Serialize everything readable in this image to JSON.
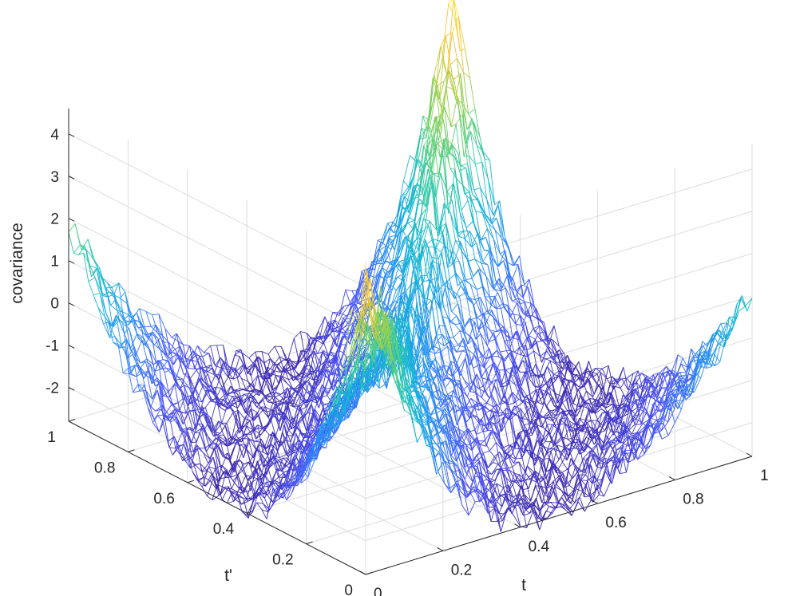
{
  "chart_data": {
    "type": "surface-mesh",
    "title": "",
    "xlabel": "t",
    "ylabel": "t'",
    "zlabel": "covariance",
    "xlim": [
      0,
      1
    ],
    "ylim": [
      0,
      1
    ],
    "zlim": [
      -2.8,
      4.6
    ],
    "x_ticks": [
      "0",
      "0.2",
      "0.4",
      "0.6",
      "0.8",
      "1"
    ],
    "y_ticks": [
      "0",
      "0.2",
      "0.4",
      "0.6",
      "0.8",
      "1"
    ],
    "z_ticks": [
      "-2",
      "-1",
      "0",
      "1",
      "2",
      "3",
      "4"
    ],
    "z_tick_values": [
      -2,
      -1,
      0,
      1,
      2,
      3,
      4
    ],
    "grid": true,
    "colormap": "parula",
    "surface": {
      "grid_points": [
        0,
        0.05,
        0.1,
        0.15,
        0.2,
        0.25,
        0.3,
        0.35,
        0.4,
        0.45,
        0.5,
        0.55,
        0.6,
        0.65,
        0.7,
        0.75,
        0.8,
        0.85,
        0.9,
        0.95,
        1
      ],
      "z_at_x_equals_y": [
        4.3,
        3.6,
        2.9,
        2.4,
        1.9,
        1.4,
        1.0,
        0.6,
        0.3,
        0.0,
        -0.2,
        0.0,
        0.3,
        0.6,
        1.0,
        1.4,
        1.9,
        2.4,
        2.9,
        3.6,
        4.3
      ],
      "z_corner_t0_t1": 2.0,
      "z_corner_t1_t0": 1.2,
      "z_trough_min": -2.6,
      "z_noise": 0.35
    }
  }
}
